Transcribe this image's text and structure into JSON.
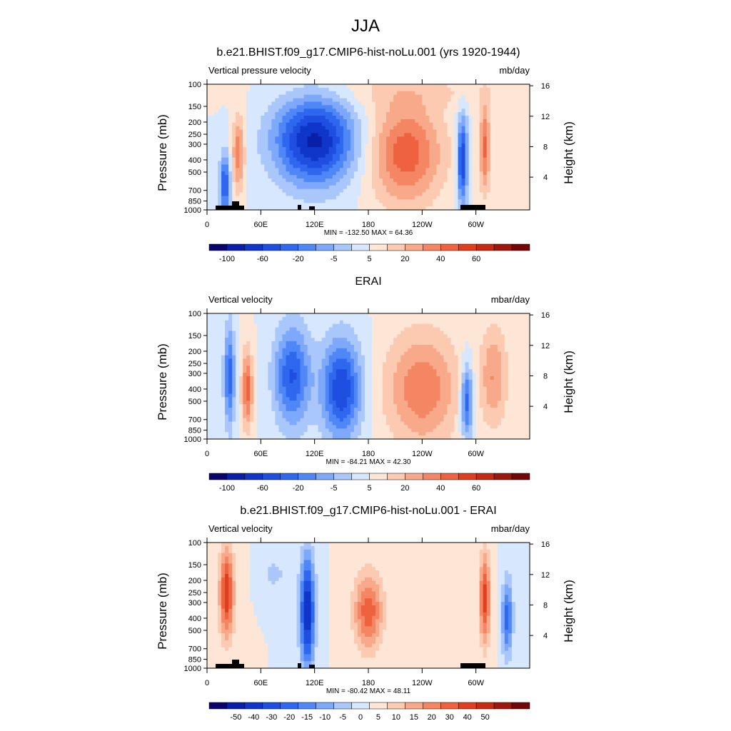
{
  "page_title": "JJA",
  "chart_data": [
    {
      "type": "heatmap",
      "title": "b.e21.BHIST.f09_g17.CMIP6-hist-noLu.001 (yrs 1920-1944)",
      "left_label": "Vertical pressure velocity",
      "right_label": "mb/day",
      "ylabel": "Pressure (mb)",
      "ylabel_right": "Height (km)",
      "x_ticks": [
        "0",
        "60E",
        "120E",
        "180",
        "120W",
        "60W"
      ],
      "y_ticks": [
        "100",
        "150",
        "200",
        "250",
        "300",
        "400",
        "500",
        "700",
        "850",
        "1000"
      ],
      "y_right_ticks": [
        "16",
        "12",
        "8",
        "4"
      ],
      "stats": "MIN = -132.50  MAX =  64.36",
      "colorbar_ticks": [
        "-100",
        "-60",
        "-20",
        "-5",
        "5",
        "20",
        "40",
        "60"
      ],
      "colorbar_levels": [
        -120,
        -100,
        -80,
        -60,
        -40,
        -20,
        -10,
        -5,
        0,
        5,
        10,
        20,
        30,
        40,
        50,
        60,
        80
      ],
      "colorbar_colors": [
        "#08046b",
        "#0a1fa8",
        "#1035c9",
        "#1f4fe0",
        "#2f67ef",
        "#4f87f7",
        "#7ea8fa",
        "#a9c7fb",
        "#d7e7fe",
        "#fde6d6",
        "#fccab1",
        "#f8a98a",
        "#f48663",
        "#ee623f",
        "#e03f1f",
        "#c42a14",
        "#9e170c",
        "#730606"
      ],
      "ylim": [
        1000,
        100
      ],
      "longitude_range": [
        "0",
        "360"
      ]
    },
    {
      "type": "heatmap",
      "title": "ERAI",
      "left_label": "Vertical velocity",
      "right_label": "mbar/day",
      "ylabel": "Pressure (mb)",
      "ylabel_right": "Height (km)",
      "x_ticks": [
        "0",
        "60E",
        "120E",
        "180",
        "120W",
        "60W"
      ],
      "y_ticks": [
        "100",
        "150",
        "200",
        "250",
        "300",
        "400",
        "500",
        "700",
        "850",
        "1000"
      ],
      "y_right_ticks": [
        "16",
        "12",
        "8",
        "4"
      ],
      "stats": "MIN = -84.21  MAX =  42.30",
      "colorbar_ticks": [
        "-100",
        "-60",
        "-20",
        "-5",
        "5",
        "20",
        "40",
        "60"
      ],
      "colorbar_colors": [
        "#08046b",
        "#0a1fa8",
        "#1035c9",
        "#1f4fe0",
        "#2f67ef",
        "#4f87f7",
        "#7ea8fa",
        "#a9c7fb",
        "#d7e7fe",
        "#fde6d6",
        "#fccab1",
        "#f8a98a",
        "#f48663",
        "#ee623f",
        "#e03f1f",
        "#c42a14",
        "#9e170c",
        "#730606"
      ],
      "ylim": [
        1000,
        100
      ]
    },
    {
      "type": "heatmap",
      "title": "b.e21.BHIST.f09_g17.CMIP6-hist-noLu.001 - ERAI",
      "left_label": "Vertical velocity",
      "right_label": "mbar/day",
      "ylabel": "Pressure (mb)",
      "ylabel_right": "Height (km)",
      "x_ticks": [
        "0",
        "60E",
        "120E",
        "180",
        "120W",
        "60W"
      ],
      "y_ticks": [
        "100",
        "150",
        "200",
        "250",
        "300",
        "400",
        "500",
        "700",
        "850",
        "1000"
      ],
      "y_right_ticks": [
        "16",
        "12",
        "8",
        "4"
      ],
      "stats": "MIN = -80.42  MAX =  48.11",
      "colorbar_ticks": [
        "-50",
        "-40",
        "-30",
        "-20",
        "-15",
        "-10",
        "-5",
        "0",
        "5",
        "10",
        "15",
        "20",
        "30",
        "40",
        "50"
      ],
      "colorbar_colors": [
        "#08046b",
        "#0a1fa8",
        "#1035c9",
        "#1f4fe0",
        "#2f67ef",
        "#4f87f7",
        "#7ea8fa",
        "#a9c7fb",
        "#d7e7fe",
        "#fde6d6",
        "#fccab1",
        "#f8a98a",
        "#f48663",
        "#ee623f",
        "#e03f1f",
        "#c42a14",
        "#9e170c",
        "#730606"
      ],
      "ylim": [
        1000,
        100
      ]
    }
  ]
}
